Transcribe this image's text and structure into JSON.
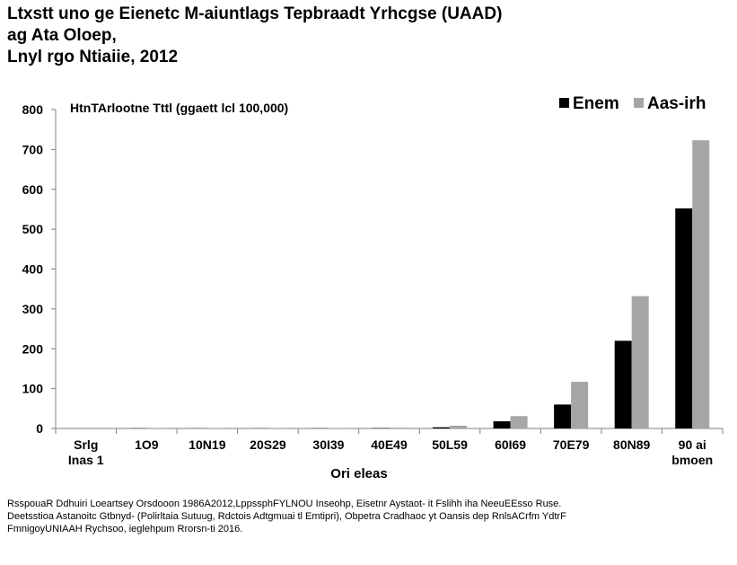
{
  "title_lines": [
    "Ltxstt uno ge Eienetc M-aiuntlags Tepbraadt Yrhcgse (UAAD)",
    "ag Ata Oloep,",
    "Lnyl rgo Ntiaiie, 2012"
  ],
  "footnote_lines": [
    "RsspouaR Ddhuiri Loeartsey Orsdooon 1986A2012,LppssphFYLNOU Inseohp, Eisetnr Aystaot- it Fslihh iha NeeuEEsso Ruse.",
    "Deetsstioa Astanoitc Gtbnyd- (Polirltaia Sutuug, Rdctois Adtgmuai tl Emtipri), Obpetra Cradhaoc yt Oansis dep RnlsACrfm YdtrF",
    "FmnigoyUNIAAH Rychsoo, ieglehpum Rrorsn-ti 2016."
  ],
  "chart_data": {
    "type": "bar",
    "title": "",
    "ylabel": "HtnTArlootne Tttl (ggaett lcl 100,000)",
    "xlabel": "Ori eleas",
    "ylim": [
      0,
      800
    ],
    "yticks": [
      0,
      100,
      200,
      300,
      400,
      500,
      600,
      700,
      800
    ],
    "grid": false,
    "legend_position": "top-right",
    "categories": [
      [
        "Srlg",
        "Inas 1"
      ],
      [
        "1O9"
      ],
      [
        "10N19"
      ],
      [
        "20S29"
      ],
      [
        "30I39"
      ],
      [
        "40E49"
      ],
      [
        "50L59"
      ],
      [
        "60I69"
      ],
      [
        "70E79"
      ],
      [
        "80N89"
      ],
      [
        "90 ai",
        "bmoen"
      ]
    ],
    "series": [
      {
        "name": "Enem",
        "color": "#000000",
        "values": [
          0,
          0.5,
          0.3,
          0.3,
          0.5,
          1,
          3,
          18,
          60,
          220,
          552
        ]
      },
      {
        "name": "Aas-irh",
        "color": "#a6a6a6",
        "values": [
          0,
          1.5,
          0.3,
          0.3,
          0.5,
          2,
          7,
          31,
          117,
          332,
          723
        ]
      }
    ]
  }
}
